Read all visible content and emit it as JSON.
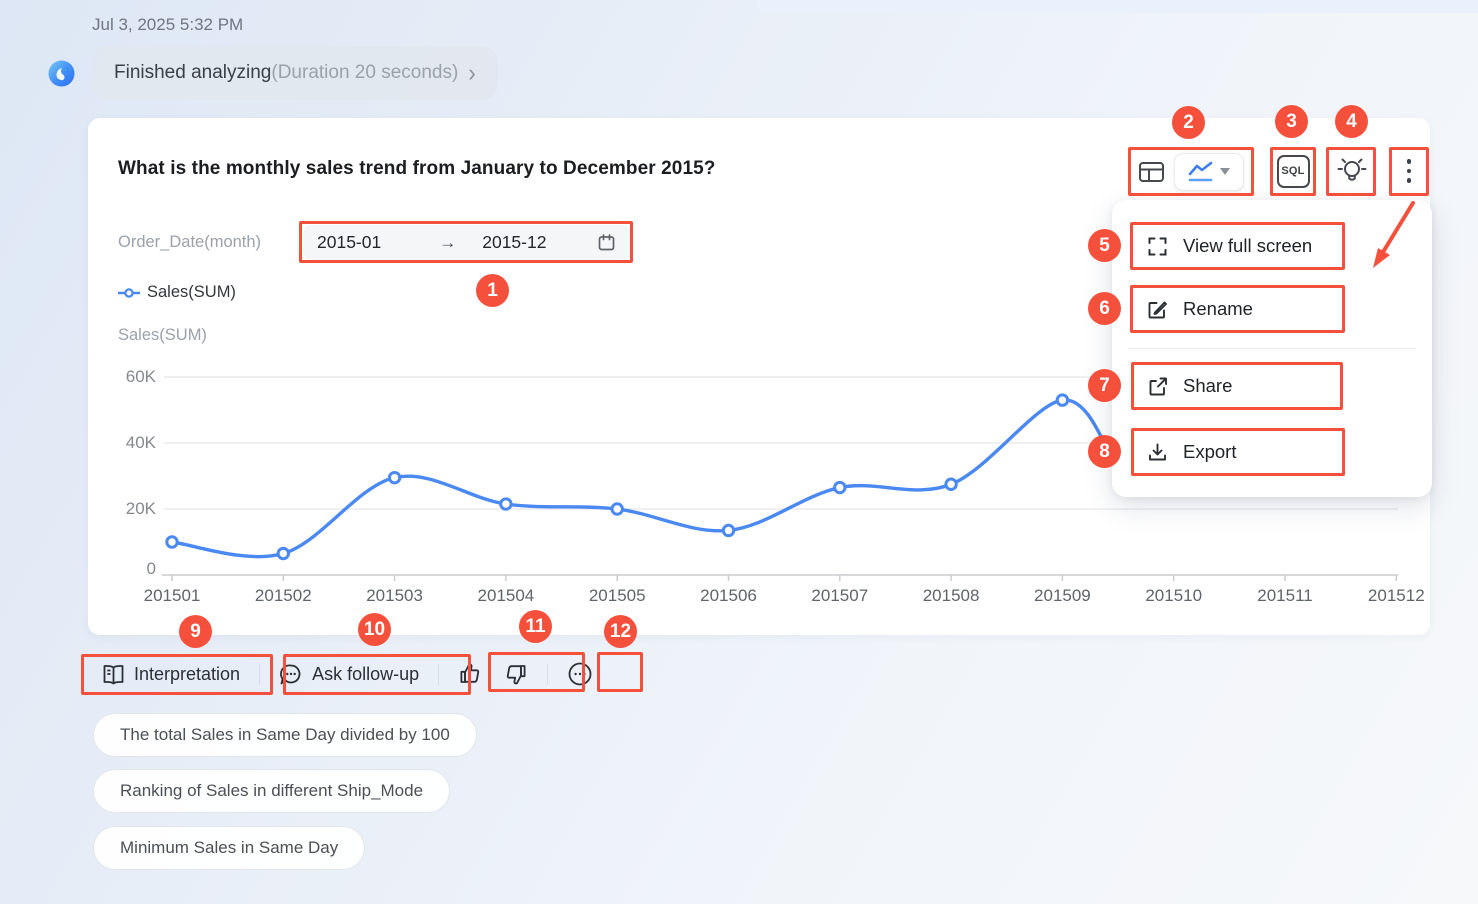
{
  "page": {
    "timestamp": "Jul 3, 2025 5:32 PM"
  },
  "status": {
    "title": "Finished analyzing",
    "duration": "(Duration 20 seconds)"
  },
  "card": {
    "question": "What is the monthly sales trend from January to December 2015?",
    "filter": {
      "label": "Order_Date(month)",
      "start": "2015-01",
      "arrow": "→",
      "end": "2015-12"
    },
    "legend": "Sales(SUM)"
  },
  "toolbar": {
    "sql_label": "SQL"
  },
  "menu": {
    "items": [
      {
        "label": "View full screen",
        "icon": "fullscreen-icon"
      },
      {
        "label": "Rename",
        "icon": "rename-icon"
      },
      {
        "label": "Share",
        "icon": "share-icon"
      },
      {
        "label": "Export",
        "icon": "export-icon"
      }
    ]
  },
  "actions": {
    "interpretation": "Interpretation",
    "ask_follow_up": "Ask follow-up"
  },
  "suggestions": [
    "The total Sales in Same Day divided by 100",
    "Ranking of Sales in different Ship_Mode",
    "Minimum Sales in Same Day"
  ],
  "annotations": {
    "badges": [
      "1",
      "2",
      "3",
      "4",
      "5",
      "6",
      "7",
      "8",
      "9",
      "10",
      "11",
      "12"
    ]
  },
  "colors": {
    "accent_blue": "#4a88f2",
    "annotation_red": "#f5503c",
    "grid": "#ececee",
    "axis": "#c9ccd1",
    "tick_text": "#5f646b"
  },
  "chart_data": {
    "type": "line",
    "title": "Sales(SUM)",
    "ylabel": "Sales(SUM)",
    "categories": [
      "201501",
      "201502",
      "201503",
      "201504",
      "201505",
      "201506",
      "201507",
      "201508",
      "201509",
      "201510",
      "201511",
      "201512"
    ],
    "series": [
      {
        "name": "Sales(SUM)",
        "values": [
          10000,
          6500,
          29500,
          21500,
          20000,
          13500,
          26500,
          27500,
          53000,
          null,
          null,
          null
        ],
        "note": "201510–201512 occluded by open dropdown menu"
      }
    ],
    "ylim": [
      0,
      60000
    ],
    "yticks": [
      {
        "label": "0",
        "v": 0
      },
      {
        "label": "20K",
        "v": 20000
      },
      {
        "label": "40K",
        "v": 40000
      },
      {
        "label": "60K",
        "v": 60000
      }
    ],
    "grid": true,
    "legend_position": "top-left",
    "smooth": true
  }
}
